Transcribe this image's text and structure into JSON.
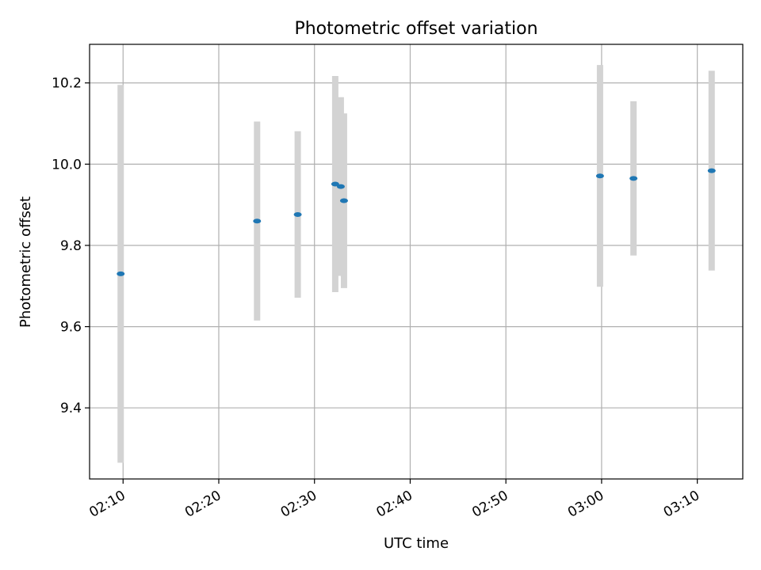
{
  "chart_data": {
    "type": "scatter",
    "title": "Photometric offset variation",
    "xlabel": "UTC time",
    "ylabel": "Photometric offset",
    "x_ticks": [
      "02:10",
      "02:20",
      "02:30",
      "02:40",
      "02:50",
      "03:00",
      "03:10"
    ],
    "y_ticks": [
      "9.4",
      "9.6",
      "9.8",
      "10.0",
      "10.2"
    ],
    "xlim": [
      "02:06:30",
      "03:14:45"
    ],
    "ylim": [
      9.225,
      10.295
    ],
    "grid": true,
    "colors": {
      "point": "#1f77b4",
      "errorbar": "#d3d3d3",
      "grid": "#b0b0b0"
    },
    "points": [
      {
        "x": "02:09:45",
        "y": 9.73,
        "err": 0.465
      },
      {
        "x": "02:24:00",
        "y": 9.86,
        "err": 0.245
      },
      {
        "x": "02:28:15",
        "y": 9.876,
        "err": 0.205
      },
      {
        "x": "02:32:10",
        "y": 9.951,
        "err": 0.266
      },
      {
        "x": "02:32:45",
        "y": 9.945,
        "err": 0.22
      },
      {
        "x": "02:33:05",
        "y": 9.91,
        "err": 0.215
      },
      {
        "x": "02:59:50",
        "y": 9.971,
        "err": 0.273
      },
      {
        "x": "03:03:20",
        "y": 9.965,
        "err": 0.19
      },
      {
        "x": "03:11:30",
        "y": 9.984,
        "err": 0.246
      }
    ]
  }
}
